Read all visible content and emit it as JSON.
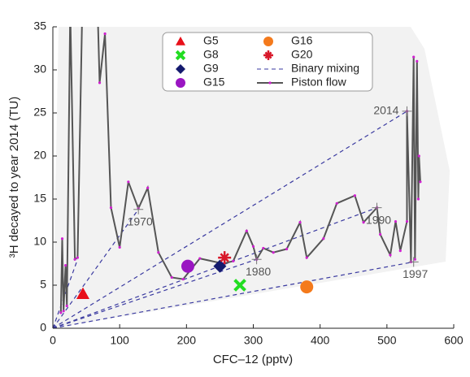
{
  "chart_data": {
    "type": "scatter",
    "xlabel": "CFC–12 (pptv)",
    "ylabel": "³H decayed to year 2014 (TU)",
    "xlim": [
      0,
      600
    ],
    "ylim": [
      0,
      35
    ],
    "xticks": [
      0,
      100,
      200,
      300,
      400,
      500,
      600
    ],
    "yticks": [
      0,
      5,
      10,
      15,
      20,
      25,
      30,
      35
    ],
    "series": [
      {
        "name": "G5",
        "color": "#e8101a",
        "marker": "triangle",
        "x": [
          45
        ],
        "y": [
          4
        ]
      },
      {
        "name": "G8",
        "color": "#22dd22",
        "marker": "x",
        "x": [
          280
        ],
        "y": [
          5
        ]
      },
      {
        "name": "G9",
        "color": "#141a6e",
        "marker": "diamond",
        "x": [
          250
        ],
        "y": [
          7.2
        ]
      },
      {
        "name": "G15",
        "color": "#9a16c2",
        "marker": "circle",
        "x": [
          202
        ],
        "y": [
          7.2
        ]
      },
      {
        "name": "G16",
        "color": "#f47a1c",
        "marker": "circle",
        "x": [
          380
        ],
        "y": [
          4.8
        ]
      },
      {
        "name": "G20",
        "color": "#d8182a",
        "marker": "star",
        "x": [
          257
        ],
        "y": [
          8.2
        ]
      }
    ],
    "mixing": {
      "name": "Binary mixing",
      "color": "#3a3aa0",
      "from": [
        0,
        0
      ],
      "x": [
        37,
        128,
        305,
        485,
        530,
        540
      ],
      "y": [
        8,
        13.8,
        8,
        14,
        25.2,
        7.7
      ]
    },
    "piston": {
      "name": "Piston flow",
      "color": "#555555",
      "marker_color": "#d020d0",
      "x": [
        12,
        14,
        16,
        19,
        21,
        26,
        33,
        37,
        44,
        67,
        70,
        78,
        87,
        100,
        113,
        128,
        142,
        158,
        178,
        195,
        220,
        255,
        270,
        290,
        300,
        305,
        315,
        330,
        350,
        370,
        380,
        405,
        425,
        452,
        465,
        485,
        490,
        505,
        513,
        520,
        530,
        530,
        536,
        540,
        542,
        545,
        547,
        548,
        550
      ],
      "y": [
        1.8,
        10.4,
        2,
        7.3,
        2.6,
        37,
        8,
        8.2,
        37,
        37,
        28.5,
        34.2,
        14,
        9.4,
        17,
        13.9,
        16.3,
        8.8,
        5.9,
        5.7,
        8.1,
        7.5,
        7.8,
        11.3,
        9.5,
        8,
        9.3,
        8.8,
        9.2,
        12.3,
        8.2,
        10.4,
        14.5,
        15.4,
        12.3,
        14,
        10.9,
        8.5,
        12.4,
        9,
        12.4,
        25.2,
        7.7,
        31.5,
        8,
        31,
        15,
        20,
        17
      ]
    },
    "annotations": [
      {
        "text": "1970",
        "x": 128,
        "y": 13.8
      },
      {
        "text": "1980",
        "x": 305,
        "y": 8
      },
      {
        "text": "1990",
        "x": 485,
        "y": 14
      },
      {
        "text": "1997",
        "x": 540,
        "y": 7.7
      },
      {
        "text": "2014",
        "x": 530,
        "y": 25.2
      }
    ]
  }
}
